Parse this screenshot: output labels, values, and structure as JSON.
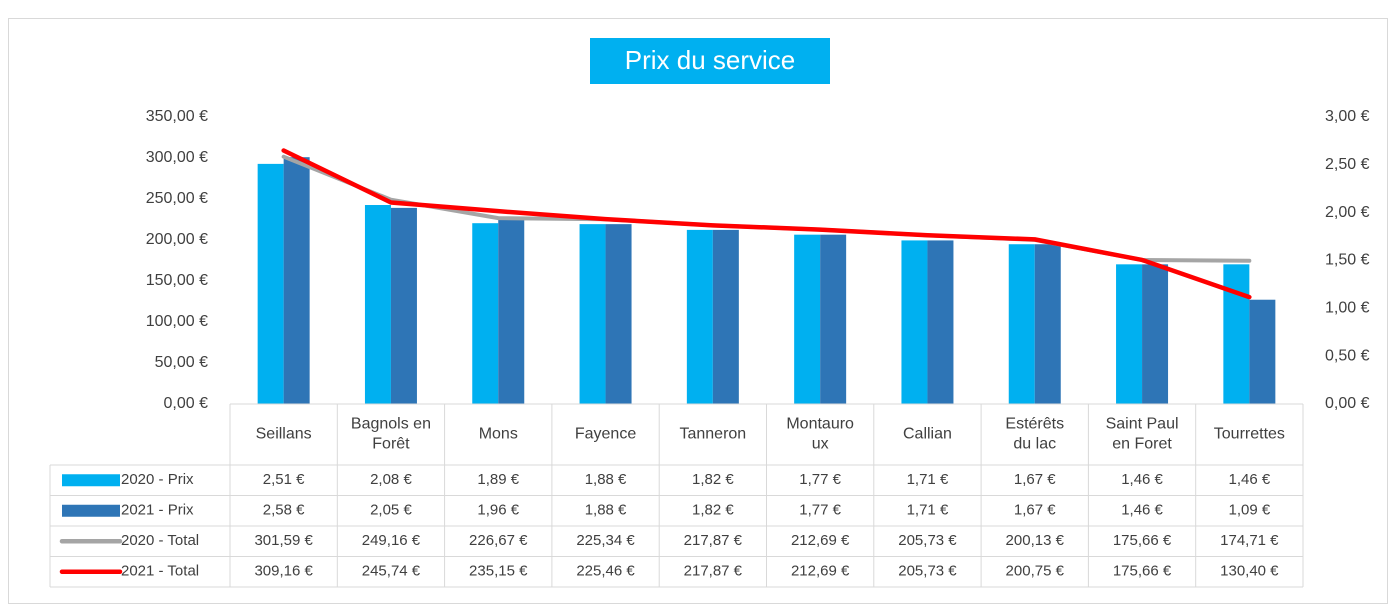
{
  "chart_data": {
    "type": "combo",
    "title": "Prix du service",
    "categories": [
      "Seillans",
      "Bagnols en\nForêt",
      "Mons",
      "Fayence",
      "Tanneron",
      "Montauro\nux",
      "Callian",
      "Estérêts\ndu lac",
      "Saint Paul\nen Foret",
      "Tourrettes"
    ],
    "series": [
      {
        "name": "2020 - Prix",
        "type": "bar",
        "axis": "y2",
        "color": "#00b0f0",
        "values": [
          2.51,
          2.08,
          1.89,
          1.88,
          1.82,
          1.77,
          1.71,
          1.67,
          1.46,
          1.46
        ],
        "value_labels": [
          "2,51 €",
          "2,08 €",
          "1,89 €",
          "1,88 €",
          "1,82 €",
          "1,77 €",
          "1,71 €",
          "1,67 €",
          "1,46 €",
          "1,46 €"
        ]
      },
      {
        "name": "2021 - Prix",
        "type": "bar",
        "axis": "y2",
        "color": "#2e75b6",
        "values": [
          2.58,
          2.05,
          1.96,
          1.88,
          1.82,
          1.77,
          1.71,
          1.67,
          1.46,
          1.09
        ],
        "value_labels": [
          "2,58 €",
          "2,05 €",
          "1,96 €",
          "1,88 €",
          "1,82 €",
          "1,77 €",
          "1,71 €",
          "1,67 €",
          "1,46 €",
          "1,09 €"
        ]
      },
      {
        "name": "2020 - Total",
        "type": "line",
        "color": "#a5a5a5",
        "values": [
          301.59,
          249.16,
          226.67,
          225.34,
          217.87,
          212.69,
          205.73,
          200.13,
          175.66,
          174.71
        ],
        "value_labels": [
          "301,59 €",
          "249,16 €",
          "226,67 €",
          "225,34 €",
          "217,87 €",
          "212,69 €",
          "205,73 €",
          "200,13 €",
          "175,66 €",
          "174,71 €"
        ]
      },
      {
        "name": "2021 - Total",
        "type": "line",
        "color": "#ff0000",
        "values": [
          309.16,
          245.74,
          235.15,
          225.46,
          217.87,
          212.69,
          205.73,
          200.75,
          175.66,
          130.4
        ],
        "value_labels": [
          "309,16 €",
          "245,74 €",
          "235,15 €",
          "225,46 €",
          "217,87 €",
          "212,69 €",
          "205,73 €",
          "200,75 €",
          "175,66 €",
          "130,40 €"
        ]
      }
    ],
    "ylim": [
      0,
      350
    ],
    "yticks": [
      {
        "value": 0,
        "label": "0,00 €"
      },
      {
        "value": 50,
        "label": "50,00 €"
      },
      {
        "value": 100,
        "label": "100,00 €"
      },
      {
        "value": 150,
        "label": "150,00 €"
      },
      {
        "value": 200,
        "label": "200,00 €"
      },
      {
        "value": 250,
        "label": "250,00 €"
      },
      {
        "value": 300,
        "label": "300,00 €"
      },
      {
        "value": 350,
        "label": "350,00 €"
      }
    ],
    "y2lim": [
      0,
      3
    ],
    "y2ticks": [
      {
        "value": 0,
        "label": "0,00 €"
      },
      {
        "value": 0.5,
        "label": "0,50 €"
      },
      {
        "value": 1,
        "label": "1,00 €"
      },
      {
        "value": 1.5,
        "label": "1,50 €"
      },
      {
        "value": 2,
        "label": "2,00 €"
      },
      {
        "value": 2.5,
        "label": "2,50 €"
      },
      {
        "value": 3,
        "label": "3,00 €"
      }
    ],
    "grid": false,
    "legend": "table"
  }
}
